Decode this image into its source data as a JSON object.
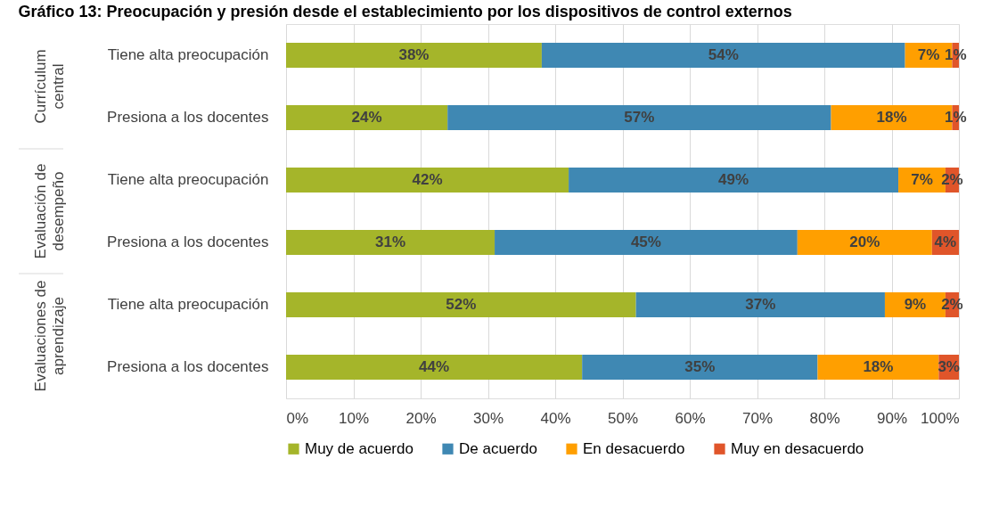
{
  "chart_data": {
    "type": "bar",
    "orientation": "horizontal",
    "stacked": true,
    "title": "Gráfico 13: Preocupación y presión desde el establecimiento por los dispositivos de control externos",
    "categories": [
      "Tiene alta preocupación",
      "Presiona a los docentes",
      "Tiene alta preocupación",
      "Presiona a los docentes",
      "Tiene alta preocupación",
      "Presiona a los docentes"
    ],
    "annotations": [
      "Currículum\ncentral",
      "Evaluación de\ndesempeño",
      "Evaluaciones de\naprendizaje"
    ],
    "series": [
      {
        "name": "Muy de acuerdo",
        "color": "#a5b52a",
        "values": [
          38,
          24,
          42,
          31,
          52,
          44
        ],
        "value_labels": [
          "38%",
          "24%",
          "42%",
          "31%",
          "52%",
          "44%"
        ]
      },
      {
        "name": "De acuerdo",
        "color": "#3f88b3",
        "values": [
          54,
          57,
          49,
          45,
          37,
          35
        ],
        "value_labels": [
          "54%",
          "57%",
          "49%",
          "45%",
          "37%",
          "35%"
        ]
      },
      {
        "name": "En desacuerdo",
        "color": "#ff9f00",
        "values": [
          7,
          18,
          7,
          20,
          9,
          18
        ],
        "value_labels": [
          "7%",
          "18%",
          "7%",
          "20%",
          "9%",
          "18%"
        ]
      },
      {
        "name": "Muy en desacuerdo",
        "color": "#e0552a",
        "values": [
          1,
          1,
          2,
          4,
          2,
          3
        ],
        "value_labels": [
          "1%",
          "1%",
          "2%",
          "4%",
          "2%",
          "3%"
        ]
      }
    ],
    "xlim": [
      0,
      100
    ],
    "xticks": [
      {
        "value": 0,
        "label": "0%"
      },
      {
        "value": 10,
        "label": "10%"
      },
      {
        "value": 20,
        "label": "20%"
      },
      {
        "value": 30,
        "label": "30%"
      },
      {
        "value": 40,
        "label": "40%"
      },
      {
        "value": 50,
        "label": "50%"
      },
      {
        "value": 60,
        "label": "60%"
      },
      {
        "value": 70,
        "label": "70%"
      },
      {
        "value": 80,
        "label": "80%"
      },
      {
        "value": 90,
        "label": "90%"
      },
      {
        "value": 100,
        "label": "100%"
      }
    ],
    "grid": "x",
    "legend": "bottom"
  }
}
